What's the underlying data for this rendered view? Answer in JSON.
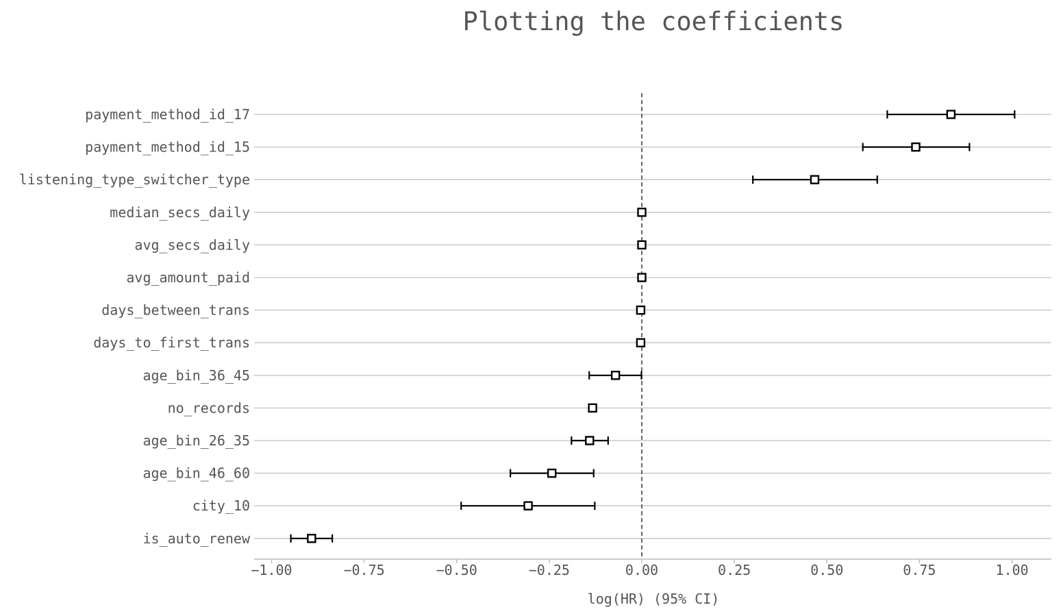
{
  "chart_data": {
    "type": "forest",
    "title": "Plotting the coefficients",
    "xlabel": "log(HR) (95% CI)",
    "ylabel": "",
    "xlim": [
      -1.05,
      1.1
    ],
    "x_ticks": [
      -1.0,
      -0.75,
      -0.5,
      -0.25,
      0.0,
      0.25,
      0.5,
      0.75,
      1.0
    ],
    "x_tick_labels": [
      "−1.00",
      "−0.75",
      "−0.50",
      "−0.25",
      "0.00",
      "0.25",
      "0.50",
      "0.75",
      "1.00"
    ],
    "reference_line": 0.0,
    "grid": "horizontal",
    "marker": "open-square",
    "rows": [
      {
        "label": "payment_method_id_17",
        "coef": 0.835,
        "lower": 0.663,
        "upper": 1.007
      },
      {
        "label": "payment_method_id_15",
        "coef": 0.74,
        "lower": 0.597,
        "upper": 0.885
      },
      {
        "label": "listening_type_switcher_type",
        "coef": 0.467,
        "lower": 0.3,
        "upper": 0.636
      },
      {
        "label": "median_secs_daily",
        "coef": 0.0,
        "lower": 0.0,
        "upper": 0.0
      },
      {
        "label": "avg_secs_daily",
        "coef": 0.0,
        "lower": 0.0,
        "upper": 0.0
      },
      {
        "label": "avg_amount_paid",
        "coef": 0.0,
        "lower": 0.0,
        "upper": 0.0
      },
      {
        "label": "days_between_trans",
        "coef": -0.003,
        "lower": -0.003,
        "upper": -0.003
      },
      {
        "label": "days_to_first_trans",
        "coef": -0.003,
        "lower": -0.003,
        "upper": -0.003
      },
      {
        "label": "age_bin_36_45",
        "coef": -0.071,
        "lower": -0.142,
        "upper": -0.001
      },
      {
        "label": "no_records",
        "coef": -0.133,
        "lower": -0.133,
        "upper": -0.133
      },
      {
        "label": "age_bin_26_35",
        "coef": -0.141,
        "lower": -0.19,
        "upper": -0.091
      },
      {
        "label": "age_bin_46_60",
        "coef": -0.243,
        "lower": -0.355,
        "upper": -0.13
      },
      {
        "label": "city_10",
        "coef": -0.307,
        "lower": -0.488,
        "upper": -0.127
      },
      {
        "label": "is_auto_renew",
        "coef": -0.892,
        "lower": -0.948,
        "upper": -0.836
      }
    ]
  }
}
